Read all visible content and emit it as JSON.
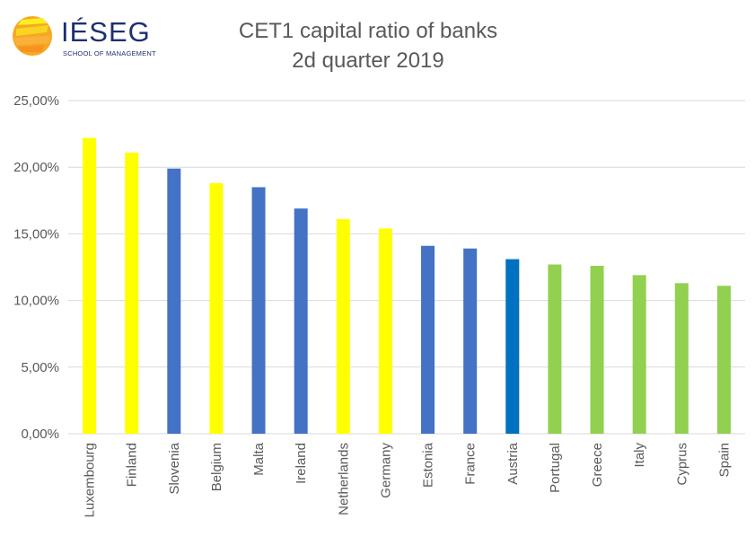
{
  "logo": {
    "name": "IÉSEG",
    "subtitle": "SCHOOL OF MANAGEMENT"
  },
  "chart_data": {
    "type": "bar",
    "title": "CET1 capital ratio of banks",
    "subtitle": "2d quarter 2019",
    "xlabel": "",
    "ylabel": "",
    "ylim": [
      0,
      25
    ],
    "yticks": [
      "0,00%",
      "5,00%",
      "10,00%",
      "15,00%",
      "20,00%",
      "25,00%"
    ],
    "ytick_values": [
      0,
      5,
      10,
      15,
      20,
      25
    ],
    "grid": true,
    "categories": [
      "Luxembourg",
      "Finland",
      "Slovenia",
      "Belgium",
      "Malta",
      "Ireland",
      "Netherlands",
      "Germany",
      "Estonia",
      "France",
      "Austria",
      "Portugal",
      "Greece",
      "Italy",
      "Cyprus",
      "Spain"
    ],
    "values": [
      22.2,
      21.1,
      19.9,
      18.8,
      18.5,
      16.9,
      16.1,
      15.4,
      14.1,
      13.9,
      13.1,
      12.7,
      12.6,
      11.9,
      11.3,
      11.1
    ],
    "colors": [
      "#ffff00",
      "#ffff00",
      "#4472c4",
      "#ffff00",
      "#4472c4",
      "#4472c4",
      "#ffff00",
      "#ffff00",
      "#4472c4",
      "#4472c4",
      "#0070c0",
      "#92d050",
      "#92d050",
      "#92d050",
      "#92d050",
      "#92d050"
    ]
  }
}
